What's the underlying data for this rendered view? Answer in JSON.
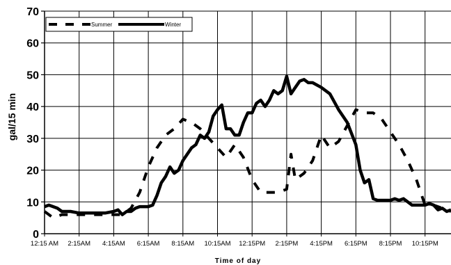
{
  "chart_data": {
    "type": "line",
    "title": "",
    "xlabel": "Time of day",
    "ylabel": "gal/15 min",
    "ylim": [
      0,
      70
    ],
    "yticks": [
      "0",
      "10",
      "20",
      "30",
      "40",
      "50",
      "60",
      "70"
    ],
    "xtick_labels": [
      "12:15 AM",
      "2:15AM",
      "4:15AM",
      "6:15AM",
      "8:15AM",
      "10:15AM",
      "12:15PM",
      "2:15PM",
      "4:15PM",
      "6:15PM",
      "8:15PM",
      "10:15PM"
    ],
    "grid": true,
    "legend_position": "top-left",
    "series": [
      {
        "name": "Summer",
        "style": "dashed",
        "color": "#000000",
        "points": [
          [
            "12:15 AM",
            7
          ],
          [
            "12:45 AM",
            5
          ],
          [
            "1:15 AM",
            6
          ],
          [
            "1:45 AM",
            6
          ],
          [
            "2:15 AM",
            6
          ],
          [
            "2:45 AM",
            6
          ],
          [
            "3:15 AM",
            6
          ],
          [
            "3:45 AM",
            6
          ],
          [
            "4:15 AM",
            6
          ],
          [
            "4:45 AM",
            6
          ],
          [
            "5:15 AM",
            8
          ],
          [
            "5:45 AM",
            13
          ],
          [
            "6:15 AM",
            21
          ],
          [
            "6:45 AM",
            27
          ],
          [
            "7:15 AM",
            31
          ],
          [
            "7:45 AM",
            33
          ],
          [
            "8:15 AM",
            36
          ],
          [
            "8:45 AM",
            35
          ],
          [
            "9:15 AM",
            33
          ],
          [
            "9:45 AM",
            30
          ],
          [
            "10:15 AM",
            27
          ],
          [
            "10:45 AM",
            24
          ],
          [
            "11:15 AM",
            28
          ],
          [
            "11:45 AM",
            24
          ],
          [
            "12:15 PM",
            17
          ],
          [
            "12:45 PM",
            13
          ],
          [
            "1:15 PM",
            13
          ],
          [
            "1:45 PM",
            13
          ],
          [
            "2:15 PM",
            14
          ],
          [
            "2:30 PM",
            25
          ],
          [
            "2:45 PM",
            17
          ],
          [
            "3:15 PM",
            19
          ],
          [
            "3:45 PM",
            23
          ],
          [
            "4:15 PM",
            31
          ],
          [
            "4:45 PM",
            27
          ],
          [
            "5:15 PM",
            29
          ],
          [
            "5:45 PM",
            34
          ],
          [
            "6:15 PM",
            39
          ],
          [
            "6:45 PM",
            38
          ],
          [
            "7:15 PM",
            38
          ],
          [
            "7:45 PM",
            36
          ],
          [
            "8:15 PM",
            32
          ],
          [
            "8:45 PM",
            28
          ],
          [
            "9:15 PM",
            23
          ],
          [
            "9:45 PM",
            17
          ],
          [
            "10:15 PM",
            9
          ],
          [
            "10:45 PM",
            9
          ],
          [
            "11:15 PM",
            8
          ],
          [
            "11:45 PM",
            7
          ]
        ]
      },
      {
        "name": "Winter",
        "style": "solid",
        "color": "#000000",
        "points": [
          [
            "12:15 AM",
            8.5
          ],
          [
            "12:30 AM",
            9
          ],
          [
            "12:45 AM",
            8.5
          ],
          [
            "1:00 AM",
            8
          ],
          [
            "1:15 AM",
            7
          ],
          [
            "1:45 AM",
            7
          ],
          [
            "2:15 AM",
            6.5
          ],
          [
            "2:45 AM",
            6.5
          ],
          [
            "3:15 AM",
            6.5
          ],
          [
            "3:45 AM",
            6.5
          ],
          [
            "4:15 AM",
            7
          ],
          [
            "4:30 AM",
            7.5
          ],
          [
            "4:45 AM",
            6
          ],
          [
            "5:00 AM",
            7
          ],
          [
            "5:15 AM",
            7
          ],
          [
            "5:30 AM",
            8
          ],
          [
            "5:45 AM",
            8.5
          ],
          [
            "6:15 AM",
            8.5
          ],
          [
            "6:30 AM",
            9
          ],
          [
            "6:45 AM",
            12
          ],
          [
            "7:00 AM",
            16
          ],
          [
            "7:15 AM",
            18
          ],
          [
            "7:30 AM",
            21
          ],
          [
            "7:45 AM",
            19
          ],
          [
            "8:00 AM",
            20
          ],
          [
            "8:15 AM",
            23
          ],
          [
            "8:30 AM",
            25
          ],
          [
            "8:45 AM",
            27
          ],
          [
            "9:00 AM",
            28
          ],
          [
            "9:15 AM",
            31
          ],
          [
            "9:30 AM",
            30
          ],
          [
            "9:45 AM",
            32
          ],
          [
            "10:00 AM",
            37
          ],
          [
            "10:15 AM",
            39
          ],
          [
            "10:30 AM",
            40.5
          ],
          [
            "10:45 AM",
            33
          ],
          [
            "11:00 AM",
            33
          ],
          [
            "11:15 AM",
            31
          ],
          [
            "11:30 AM",
            31
          ],
          [
            "11:45 AM",
            35
          ],
          [
            "12:00 PM",
            38
          ],
          [
            "12:15 PM",
            38
          ],
          [
            "12:30 PM",
            41
          ],
          [
            "12:45 PM",
            42
          ],
          [
            "1:00 PM",
            40
          ],
          [
            "1:15 PM",
            42
          ],
          [
            "1:30 PM",
            45
          ],
          [
            "1:45 PM",
            44
          ],
          [
            "2:00 PM",
            45
          ],
          [
            "2:15 PM",
            49.5
          ],
          [
            "2:30 PM",
            44
          ],
          [
            "2:45 PM",
            46
          ],
          [
            "3:00 PM",
            48
          ],
          [
            "3:15 PM",
            48.5
          ],
          [
            "3:30 PM",
            47.5
          ],
          [
            "3:45 PM",
            47.5
          ],
          [
            "4:15 PM",
            46
          ],
          [
            "4:45 PM",
            44
          ],
          [
            "5:15 PM",
            39
          ],
          [
            "5:45 PM",
            35
          ],
          [
            "6:15 PM",
            28
          ],
          [
            "6:30 PM",
            20
          ],
          [
            "6:45 PM",
            16
          ],
          [
            "7:00 PM",
            17
          ],
          [
            "7:15 PM",
            11
          ],
          [
            "7:30 PM",
            10.5
          ],
          [
            "7:45 PM",
            10.5
          ],
          [
            "8:15 PM",
            10.5
          ],
          [
            "8:30 PM",
            11
          ],
          [
            "8:45 PM",
            10.5
          ],
          [
            "9:00 PM",
            11
          ],
          [
            "9:15 PM",
            10
          ],
          [
            "9:30 PM",
            9
          ],
          [
            "10:00 PM",
            9
          ],
          [
            "10:15 PM",
            9
          ],
          [
            "10:30 PM",
            9.5
          ],
          [
            "10:45 PM",
            9
          ],
          [
            "11:00 PM",
            7.5
          ],
          [
            "11:15 PM",
            8
          ],
          [
            "11:30 PM",
            7
          ],
          [
            "11:45 PM",
            7.5
          ]
        ]
      }
    ]
  }
}
